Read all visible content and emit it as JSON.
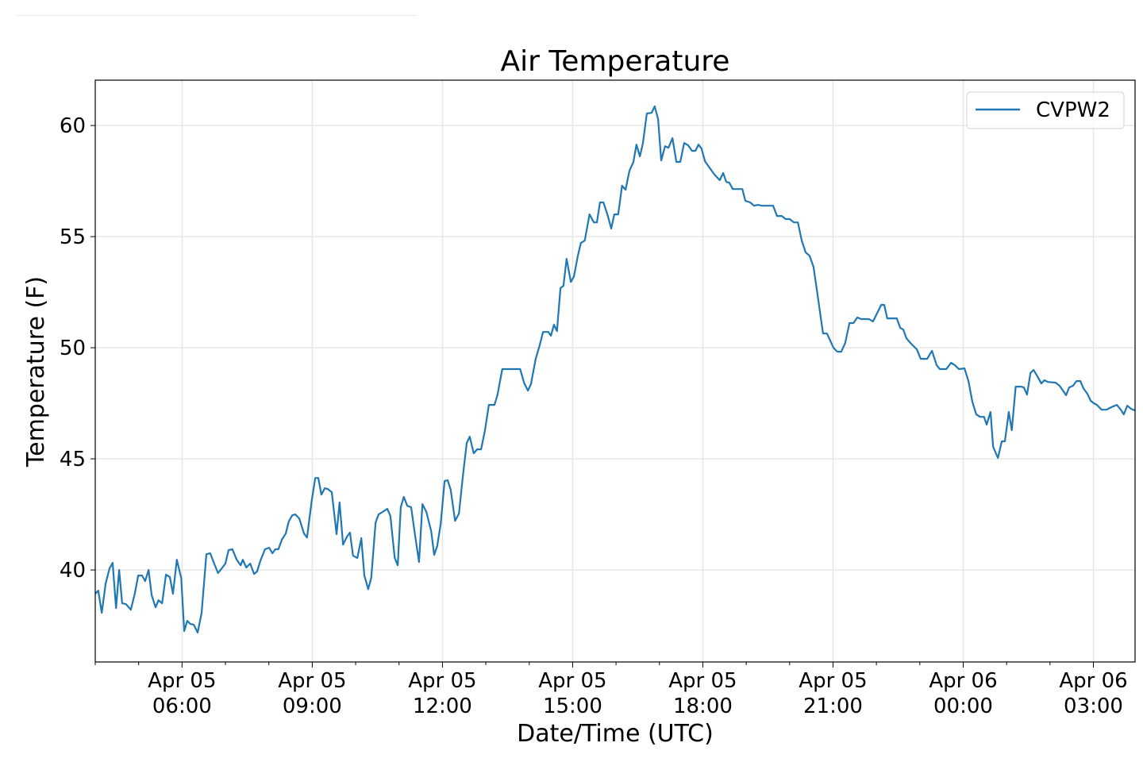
{
  "chart_data": {
    "type": "line",
    "title": "Air Temperature",
    "xlabel": "Date/Time (UTC)",
    "ylabel": "Temperature (F)",
    "x_units": "hours since Apr 05 00:00 UTC",
    "xlim": [
      4,
      27.96
    ],
    "ylim": [
      35.86,
      62.04
    ],
    "grid": true,
    "legend_position": "top-right",
    "x_ticks": [
      {
        "value": 6,
        "line1": "Apr 05",
        "line2": "06:00"
      },
      {
        "value": 9,
        "line1": "Apr 05",
        "line2": "09:00"
      },
      {
        "value": 12,
        "line1": "Apr 05",
        "line2": "12:00"
      },
      {
        "value": 15,
        "line1": "Apr 05",
        "line2": "15:00"
      },
      {
        "value": 18,
        "line1": "Apr 05",
        "line2": "18:00"
      },
      {
        "value": 21,
        "line1": "Apr 05",
        "line2": "21:00"
      },
      {
        "value": 24,
        "line1": "Apr 06",
        "line2": "00:00"
      },
      {
        "value": 27,
        "line1": "Apr 06",
        "line2": "03:00"
      }
    ],
    "y_ticks": [
      40,
      45,
      50,
      55,
      60
    ],
    "series": [
      {
        "name": "CVPW2",
        "color": "#1f77b4",
        "x": [
          4.0,
          4.07,
          4.15,
          4.24,
          4.33,
          4.4,
          4.48,
          4.55,
          4.62,
          4.71,
          4.82,
          4.91,
          4.99,
          5.08,
          5.15,
          5.23,
          5.3,
          5.39,
          5.46,
          5.54,
          5.63,
          5.72,
          5.79,
          5.88,
          5.98,
          6.05,
          6.12,
          6.19,
          6.27,
          6.36,
          6.45,
          6.56,
          6.65,
          6.74,
          6.83,
          6.93,
          7.0,
          7.07,
          7.16,
          7.26,
          7.35,
          7.4,
          7.48,
          7.57,
          7.66,
          7.73,
          7.8,
          7.91,
          8.01,
          8.08,
          8.15,
          8.22,
          8.3,
          8.39,
          8.46,
          8.54,
          8.61,
          8.7,
          8.81,
          8.88,
          8.99,
          9.07,
          9.14,
          9.21,
          9.29,
          9.36,
          9.45,
          9.56,
          9.63,
          9.71,
          9.8,
          9.87,
          9.94,
          10.04,
          10.13,
          10.2,
          10.29,
          10.36,
          10.46,
          10.53,
          10.62,
          10.73,
          10.8,
          10.9,
          10.97,
          11.04,
          11.11,
          11.19,
          11.28,
          11.37,
          11.46,
          11.54,
          11.63,
          11.74,
          11.81,
          11.88,
          11.96,
          12.05,
          12.12,
          12.19,
          12.29,
          12.38,
          12.47,
          12.56,
          12.63,
          12.72,
          12.8,
          12.89,
          12.98,
          13.07,
          13.2,
          13.27,
          13.38,
          13.79,
          13.88,
          13.97,
          14.04,
          14.15,
          14.24,
          14.32,
          14.44,
          14.5,
          14.57,
          14.64,
          14.72,
          14.79,
          14.86,
          14.96,
          15.03,
          15.12,
          15.19,
          15.28,
          15.39,
          15.49,
          15.56,
          15.63,
          15.71,
          15.8,
          15.89,
          15.96,
          16.05,
          16.14,
          16.22,
          16.31,
          16.4,
          16.47,
          16.55,
          16.62,
          16.71,
          16.82,
          16.89,
          16.97,
          17.04,
          17.13,
          17.21,
          17.3,
          17.39,
          17.48,
          17.57,
          17.66,
          17.75,
          17.83,
          17.9,
          17.97,
          18.05,
          18.14,
          18.27,
          18.39,
          18.47,
          18.54,
          18.61,
          18.69,
          18.91,
          18.98,
          19.09,
          19.18,
          19.27,
          19.36,
          19.62,
          19.71,
          19.82,
          19.91,
          20.0,
          20.1,
          20.19,
          20.28,
          20.37,
          20.46,
          20.55,
          20.64,
          20.77,
          20.86,
          20.92,
          21.01,
          21.1,
          21.19,
          21.28,
          21.38,
          21.47,
          21.56,
          21.65,
          21.83,
          21.92,
          22.03,
          22.11,
          22.18,
          22.25,
          22.38,
          22.47,
          22.55,
          22.62,
          22.69,
          22.8,
          22.93,
          23.02,
          23.17,
          23.28,
          23.39,
          23.46,
          23.61,
          23.72,
          23.81,
          23.9,
          24.03,
          24.12,
          24.21,
          24.3,
          24.39,
          24.48,
          24.54,
          24.63,
          24.69,
          24.8,
          24.89,
          24.96,
          25.05,
          25.12,
          25.21,
          25.33,
          25.4,
          25.47,
          25.55,
          25.62,
          25.71,
          25.8,
          25.87,
          25.95,
          26.13,
          26.22,
          26.31,
          26.37,
          26.44,
          26.53,
          26.61,
          26.7,
          26.77,
          26.86,
          26.94,
          27.01,
          27.08,
          27.19,
          27.3,
          27.41,
          27.54,
          27.63,
          27.7,
          27.78,
          27.87,
          27.96
        ],
        "y": [
          38.93,
          39.07,
          38.07,
          39.39,
          40.07,
          40.32,
          38.29,
          40.0,
          38.5,
          38.46,
          38.21,
          38.93,
          39.75,
          39.75,
          39.5,
          40.0,
          38.86,
          38.32,
          38.64,
          38.5,
          39.79,
          39.68,
          38.93,
          40.46,
          39.64,
          37.25,
          37.71,
          37.57,
          37.54,
          37.18,
          38.07,
          40.71,
          40.75,
          40.29,
          39.86,
          40.11,
          40.29,
          40.89,
          40.93,
          40.46,
          40.21,
          40.46,
          40.11,
          40.29,
          39.82,
          39.93,
          40.39,
          40.93,
          41.0,
          40.75,
          40.93,
          40.93,
          41.36,
          41.64,
          42.18,
          42.46,
          42.5,
          42.32,
          41.64,
          41.46,
          43.14,
          44.14,
          44.14,
          43.39,
          43.68,
          43.64,
          43.5,
          41.61,
          43.04,
          41.14,
          41.5,
          41.68,
          40.64,
          40.54,
          41.43,
          39.75,
          39.14,
          39.64,
          42.14,
          42.5,
          42.61,
          42.75,
          42.43,
          40.54,
          40.21,
          42.82,
          43.29,
          42.89,
          42.82,
          41.54,
          40.36,
          42.96,
          42.61,
          41.75,
          40.68,
          41.07,
          42.07,
          44.0,
          44.04,
          43.61,
          42.21,
          42.54,
          44.21,
          45.71,
          46.0,
          45.25,
          45.43,
          45.43,
          46.29,
          47.43,
          47.43,
          47.89,
          49.04,
          49.04,
          48.43,
          48.07,
          48.36,
          49.5,
          50.11,
          50.71,
          50.71,
          50.54,
          51.04,
          50.75,
          52.68,
          52.79,
          54.0,
          52.96,
          53.21,
          54.14,
          54.71,
          54.82,
          56.0,
          55.64,
          55.64,
          56.54,
          56.54,
          56.0,
          55.36,
          56.0,
          56.0,
          57.29,
          57.11,
          57.96,
          58.36,
          59.14,
          58.61,
          59.21,
          60.54,
          60.57,
          60.86,
          60.29,
          58.43,
          59.07,
          59.0,
          59.43,
          58.36,
          58.36,
          59.21,
          59.11,
          58.86,
          58.86,
          59.14,
          58.96,
          58.39,
          58.14,
          57.79,
          57.54,
          57.86,
          57.46,
          57.43,
          57.14,
          57.14,
          56.61,
          56.54,
          56.39,
          56.43,
          56.39,
          56.39,
          55.93,
          55.93,
          55.79,
          55.79,
          55.64,
          55.64,
          54.82,
          54.29,
          54.14,
          53.64,
          52.43,
          50.64,
          50.64,
          50.39,
          50.0,
          49.82,
          49.82,
          50.21,
          51.11,
          51.11,
          51.36,
          51.29,
          51.29,
          51.18,
          51.61,
          51.93,
          51.93,
          51.32,
          51.32,
          51.32,
          50.89,
          50.82,
          50.43,
          50.18,
          49.93,
          49.5,
          49.5,
          49.86,
          49.21,
          49.04,
          49.04,
          49.32,
          49.21,
          49.04,
          49.07,
          48.5,
          47.57,
          47.0,
          46.89,
          46.89,
          46.54,
          47.11,
          45.54,
          45.04,
          45.79,
          45.79,
          47.11,
          46.29,
          48.25,
          48.25,
          48.21,
          47.89,
          48.86,
          49.0,
          48.71,
          48.39,
          48.54,
          48.46,
          48.43,
          48.29,
          48.04,
          47.86,
          48.21,
          48.29,
          48.5,
          48.5,
          48.18,
          47.93,
          47.61,
          47.5,
          47.43,
          47.21,
          47.21,
          47.32,
          47.43,
          47.21,
          47.0,
          47.39,
          47.25,
          47.18
        ]
      }
    ]
  }
}
